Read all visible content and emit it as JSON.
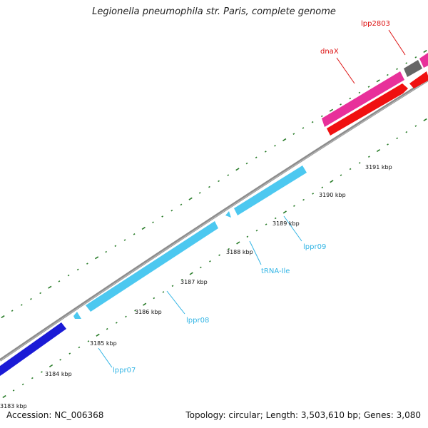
{
  "title": "Legionella pneumophila str. Paris, complete genome",
  "footer": {
    "accession": "Accession: NC_006368",
    "summary": "Topology: circular; Length: 3,503,610 bp; Genes: 3,080"
  },
  "colors": {
    "tick": "#2a7d2a",
    "backbone": "#8c8c8c",
    "cds_blue": "#1a1ad6",
    "trna_cyan": "#4cc8f0",
    "cds_magenta": "#e8309a",
    "cds_red": "#f01010",
    "cds_gray": "#666666",
    "label_cyan": "#33b5e5",
    "label_red": "#dd1111"
  },
  "scale": {
    "unit": "kbp",
    "labels": [
      "3183 kbp",
      "3184 kbp",
      "3185 kbp",
      "3186 kbp",
      "3187 kbp",
      "3188 kbp",
      "3189 kbp",
      "3190 kbp",
      "3191 kbp"
    ]
  },
  "features": [
    {
      "label": "",
      "color_key": "cds_blue",
      "strand": "reverse"
    },
    {
      "label": "lppr07",
      "color_key": "trna_cyan",
      "strand": "reverse"
    },
    {
      "label": "lppr08",
      "color_key": "trna_cyan",
      "strand": "reverse"
    },
    {
      "label": "tRNA-Ile",
      "color_key": "trna_cyan",
      "strand": "reverse"
    },
    {
      "label": "lppr09",
      "color_key": "trna_cyan",
      "strand": "reverse"
    },
    {
      "label": "dnaX",
      "color_key": "cds_magenta",
      "strand": "forward"
    },
    {
      "label": "",
      "color_key": "cds_red",
      "strand": "forward"
    },
    {
      "label": "lpp2803",
      "color_key": "cds_gray",
      "strand": "forward"
    }
  ]
}
